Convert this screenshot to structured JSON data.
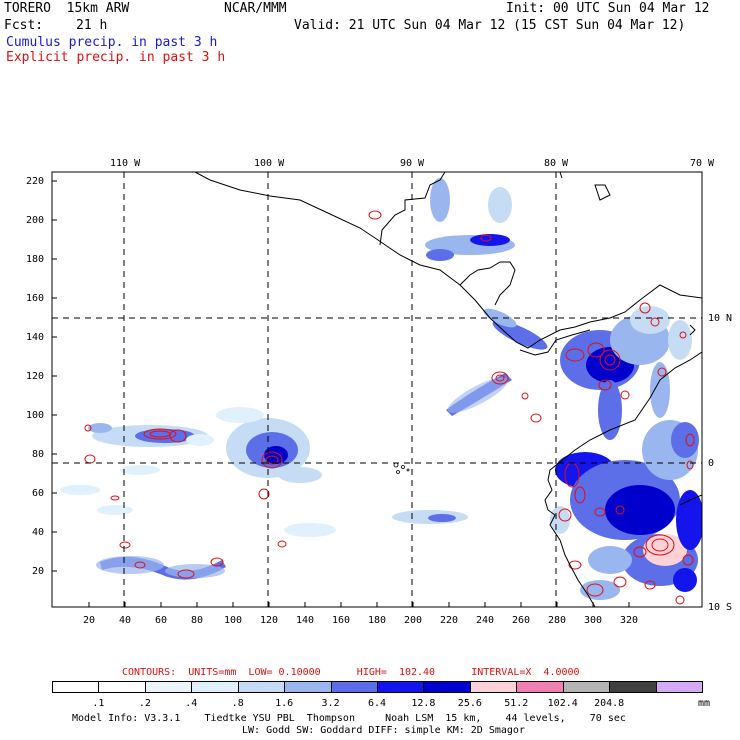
{
  "header": {
    "model": "TORERO  15km ARW",
    "org": "NCAR/MMM",
    "init": "Init: 00 UTC Sun 04 Mar 12",
    "fcst_label": "Fcst:",
    "fcst_value": "21 h",
    "valid": "Valid: 21 UTC Sun 04 Mar 12 (15 CST Sun 04 Mar 12)"
  },
  "legend": {
    "cumulus": "Cumulus precip. in past 3 h",
    "explicit": "Explicit precip. in past 3 h"
  },
  "map": {
    "lon_labels": [
      "110 W",
      "100 W",
      "90 W",
      "80 W",
      "70 W"
    ],
    "lat_labels": [
      "10 N",
      "0",
      "10 S"
    ],
    "y_ticks": [
      "220",
      "200",
      "180",
      "160",
      "140",
      "120",
      "100",
      "80",
      "60",
      "40",
      "20"
    ],
    "x_ticks": [
      "20",
      "40",
      "60",
      "80",
      "100",
      "120",
      "140",
      "160",
      "180",
      "200",
      "220",
      "240",
      "260",
      "280",
      "300",
      "320"
    ]
  },
  "contour_info": "CONTOURS:  UNITS=mm  LOW= 0.10000      HIGH=  102.40      INTERVAL=X  4.0000",
  "colorbar": {
    "labels": [
      ".1",
      ".2",
      ".4",
      ".8",
      "1.6",
      "3.2",
      "6.4",
      "12.8",
      "25.6",
      "51.2",
      "102.4",
      "204.8"
    ],
    "unit": "mm",
    "colors": [
      "#ffffff",
      "#ffffff",
      "#eaf4fa",
      "#e0f0fc",
      "#c6dcf4",
      "#9ab6ee",
      "#5c6ee8",
      "#1414ec",
      "#0000cc",
      "#fcd2d8",
      "#f080b4",
      "#b4b4b4",
      "#404040",
      "#d4aaf4"
    ]
  },
  "footer": {
    "line1": "Model Info: V3.3.1    Tiedtke YSU PBL  Thompson     Noah LSM  15 km,    44 levels,    70 sec",
    "line2": "LW: Godd SW: Goddard DIFF: simple KM: 2D Smagor"
  }
}
